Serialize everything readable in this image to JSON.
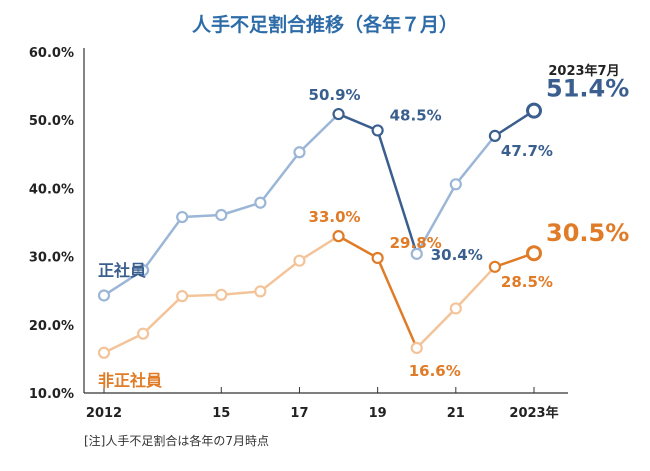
{
  "chart_data": {
    "type": "line",
    "title": "人手不足割合推移（各年７月）",
    "x": [
      2012,
      2013,
      2014,
      2015,
      2016,
      2017,
      2018,
      2019,
      2020,
      2021,
      2022,
      2023
    ],
    "x_tick_labels": [
      {
        "x": 2012,
        "label": "2012"
      },
      {
        "x": 2015,
        "label": "15"
      },
      {
        "x": 2017,
        "label": "17"
      },
      {
        "x": 2019,
        "label": "19"
      },
      {
        "x": 2021,
        "label": "21"
      },
      {
        "x": 2023,
        "label": "2023年"
      }
    ],
    "y_ticks": [
      "10.0%",
      "20.0%",
      "30.0%",
      "40.0%",
      "50.0%",
      "60.0%"
    ],
    "y_tick_values": [
      10,
      20,
      30,
      40,
      50,
      60
    ],
    "ylim": [
      10,
      60
    ],
    "xlim": [
      2012,
      2023
    ],
    "grid": false,
    "series": [
      {
        "name": "正社員",
        "light_color": "#9bb6d6",
        "dark_color": "#3a5f8e",
        "values": [
          24.3,
          28.0,
          35.8,
          36.1,
          37.9,
          45.3,
          50.9,
          48.5,
          30.4,
          40.6,
          47.7,
          51.4
        ],
        "labels": [
          {
            "x": 2018,
            "text": "50.9%"
          },
          {
            "x": 2019,
            "text": "48.5%"
          },
          {
            "x": 2020,
            "text": "30.4%"
          },
          {
            "x": 2022,
            "text": "47.7%"
          }
        ],
        "final_label": "51.4%"
      },
      {
        "name": "非正社員",
        "light_color": "#f3c49a",
        "dark_color": "#e07b27",
        "values": [
          15.9,
          18.7,
          24.2,
          24.4,
          24.9,
          29.4,
          33.0,
          29.8,
          16.6,
          22.4,
          28.5,
          30.5
        ],
        "labels": [
          {
            "x": 2018,
            "text": "33.0%"
          },
          {
            "x": 2019,
            "text": "29.8%"
          },
          {
            "x": 2020,
            "text": "16.6%"
          },
          {
            "x": 2022,
            "text": "28.5%"
          }
        ],
        "final_label": "30.5%"
      }
    ],
    "annotation": "2023年7月",
    "annotation_color": "#e0405a",
    "footnote": "[注]人手不足割合は各年の7月時点"
  }
}
